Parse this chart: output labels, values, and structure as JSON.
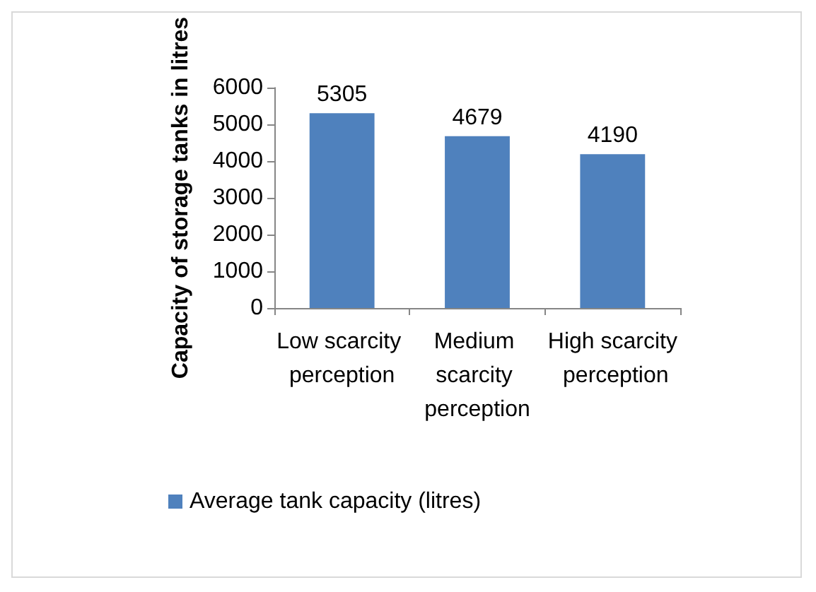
{
  "chart_data": {
    "type": "bar",
    "ylabel": "Capacity of storage tanks in litres",
    "categories": [
      "Low scarcity perception",
      "Medium scarcity perception",
      "High scarcity perception"
    ],
    "series": [
      {
        "name": "Average tank capacity (litres)",
        "color": "#4f81bd",
        "values": [
          5305,
          4679,
          4190
        ]
      }
    ],
    "ylim": [
      0,
      6000
    ],
    "yticks": [
      0,
      1000,
      2000,
      3000,
      4000,
      5000,
      6000
    ],
    "grid": false,
    "legend": "bottom",
    "data_labels": true
  }
}
